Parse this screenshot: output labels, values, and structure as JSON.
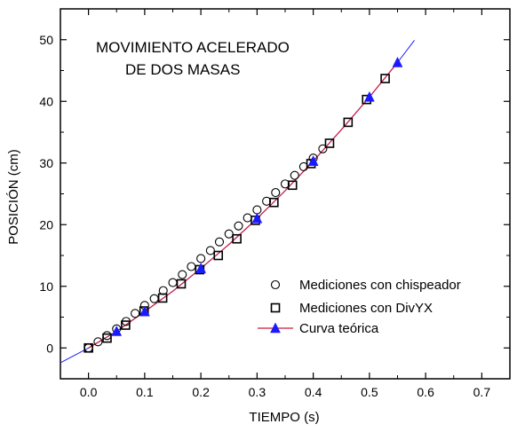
{
  "chart_data": {
    "type": "scatter",
    "title_lines": [
      "MOVIMIENTO ACELERADO",
      "DE  DOS MASAS"
    ],
    "xlabel": "TIEMPO (s)",
    "ylabel": "POSICIÓN (cm)",
    "xlim": [
      -0.05,
      0.75
    ],
    "ylim": [
      -5,
      55
    ],
    "xticks": [
      "0.0",
      "0.1",
      "0.2",
      "0.3",
      "0.4",
      "0.5",
      "0.6",
      "0.7"
    ],
    "xtick_values": [
      0.0,
      0.1,
      0.2,
      0.3,
      0.4,
      0.5,
      0.6,
      0.7
    ],
    "yticks": [
      "0",
      "10",
      "20",
      "30",
      "40",
      "50"
    ],
    "ytick_values": [
      0,
      10,
      20,
      30,
      40,
      50
    ],
    "grid": false,
    "legend_position": "bottom-right",
    "series": [
      {
        "name": "Mediciones con chispeador",
        "marker": "circle-open",
        "color": "#000000",
        "x": [
          0.0,
          0.017,
          0.033,
          0.05,
          0.067,
          0.083,
          0.1,
          0.117,
          0.133,
          0.15,
          0.167,
          0.183,
          0.2,
          0.217,
          0.233,
          0.25,
          0.267,
          0.283,
          0.3,
          0.317,
          0.333,
          0.35,
          0.367,
          0.383,
          0.4,
          0.417
        ],
        "y": [
          0.0,
          1.0,
          2.0,
          3.1,
          4.3,
          5.6,
          6.9,
          8.0,
          9.3,
          10.6,
          11.9,
          13.2,
          14.5,
          15.8,
          17.2,
          18.5,
          19.8,
          21.1,
          22.4,
          23.8,
          25.2,
          26.6,
          28.0,
          29.4,
          30.8,
          32.3
        ]
      },
      {
        "name": "Mediciones con DivYX",
        "marker": "square-open",
        "color": "#000000",
        "x": [
          0.0,
          0.033,
          0.066,
          0.099,
          0.132,
          0.165,
          0.198,
          0.231,
          0.264,
          0.297,
          0.33,
          0.363,
          0.396,
          0.429,
          0.462,
          0.495,
          0.528
        ],
        "y": [
          0.0,
          1.6,
          3.7,
          6.0,
          8.1,
          10.4,
          12.7,
          15.0,
          17.7,
          20.7,
          23.6,
          26.4,
          29.9,
          33.2,
          36.6,
          40.3,
          43.7
        ]
      },
      {
        "name": "Curva teórica",
        "marker": "triangle-filled",
        "color": "#1a1aff",
        "line_color": "#cc1a3a",
        "x": [
          0.05,
          0.1,
          0.2,
          0.3,
          0.4,
          0.5,
          0.55
        ],
        "y": [
          2.7,
          5.9,
          12.9,
          21.0,
          30.3,
          40.7,
          46.3
        ]
      }
    ],
    "fit_line": {
      "color": "#1a1aff",
      "x": [
        -0.05,
        0.0,
        0.05,
        0.1,
        0.15,
        0.2,
        0.25,
        0.3,
        0.35,
        0.4,
        0.45,
        0.5,
        0.55,
        0.58
      ],
      "y": [
        -2.4,
        0.0,
        2.7,
        5.9,
        9.2,
        12.9,
        16.8,
        21.0,
        25.5,
        30.3,
        35.4,
        40.7,
        46.3,
        49.9
      ]
    },
    "theory_line": {
      "color": "#cc1a3a",
      "x": [
        0.0,
        0.05,
        0.1,
        0.15,
        0.2,
        0.25,
        0.3,
        0.35,
        0.4,
        0.45,
        0.5,
        0.55
      ],
      "y": [
        0.0,
        2.7,
        5.9,
        9.2,
        12.9,
        16.8,
        21.0,
        25.5,
        30.3,
        35.4,
        40.7,
        46.3
      ]
    }
  }
}
